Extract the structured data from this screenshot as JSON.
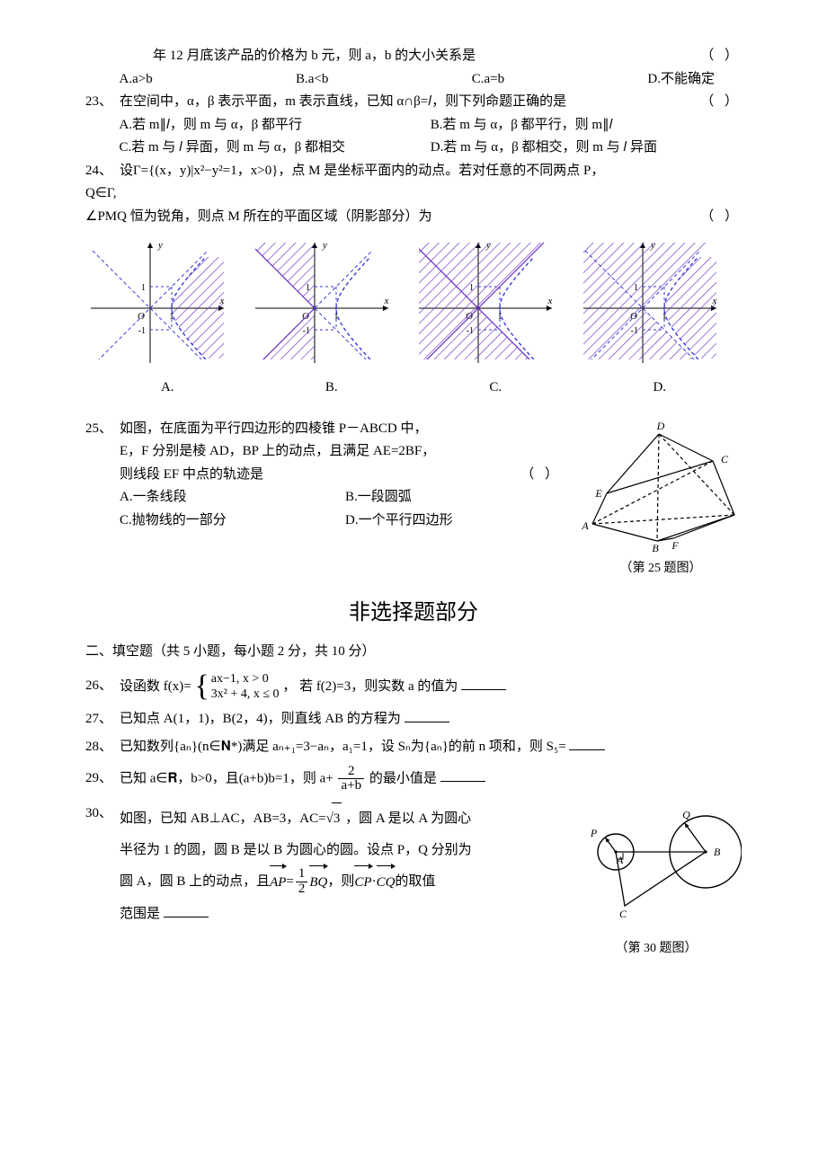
{
  "colors": {
    "text": "#000000",
    "bg": "#ffffff",
    "chart_axis": "#000000",
    "chart_dash": "#3b3bd6",
    "chart_hatch": "#6a2fc4",
    "chart_label": "#000000"
  },
  "q22": {
    "frag": "年 12 月底该产品的价格为 b 元，则 a，b 的大小关系是",
    "paren": "（     ）",
    "opts": [
      "A.a>b",
      "B.a<b",
      "C.a=b",
      "D.不能确定"
    ]
  },
  "q23": {
    "num": "23、",
    "text": "在空间中，α，β 表示平面，m 表示直线，已知 α∩β=𝑙，则下列命题正确的是",
    "paren": "（     ）",
    "opts": [
      "A.若 m∥𝑙，则 m 与 α，β 都平行",
      "B.若 m 与 α，β 都平行，则 m∥𝑙",
      "C.若 m 与 𝑙 异面，则 m 与 α，β 都相交",
      "D.若 m 与 α，β 都相交，则 m 与 𝑙 异面"
    ]
  },
  "q24": {
    "num": "24、",
    "text1": "设Γ={(x，y)|x²−y²=1，x>0}，点 M 是坐标平面内的动点。若对任意的不同两点 P，",
    "text1b": "Q∈Γ,",
    "text2": "∠PMQ 恒为锐角，则点 M 所在的平面区域（阴影部分）为",
    "paren": "（     ）",
    "chart": {
      "type": "4 hyperbola-region diagrams",
      "width": 160,
      "height": 150,
      "axis_color": "#000000",
      "asymptote_color": "#3b3bd6",
      "curve_color": "#3b3bd6",
      "hatch_color": "#6a2fc4",
      "tick_labels": [
        "1",
        "-1",
        "1"
      ],
      "axis_labels": [
        "x",
        "y",
        "O"
      ],
      "tick_fontsize": 10,
      "axis_fontsize": 11
    },
    "optlabels": [
      "A.",
      "B.",
      "C.",
      "D."
    ]
  },
  "q25": {
    "num": "25、",
    "l1": "如图，在底面为平行四边形的四棱锥 P－ABCD 中，",
    "l2": "E，F 分别是棱 AD，BP 上的动点，且满足 AE=2BF，",
    "l3": "则线段 EF 中点的轨迹是",
    "paren": "（     ）",
    "opts": [
      "A.一条线段",
      "B.一段圆弧",
      "C.抛物线的一部分",
      "D.一个平行四边形"
    ],
    "caption": "（第 25 题图）",
    "fig": {
      "labels": [
        "A",
        "B",
        "C",
        "D",
        "E",
        "F",
        "P"
      ],
      "line_color": "#000000",
      "dash_color": "#000000"
    }
  },
  "sectionTitle": "非选择题部分",
  "section2": "二、填空题（共 5 小题，每小题 2 分，共 10 分）",
  "q26": {
    "num": "26、",
    "pre": "设函数 f(x)=",
    "cases": [
      "ax−1, x > 0",
      "3x² + 4, x ≤ 0"
    ],
    "post": "， 若 f(2)=3，则实数 a 的值为"
  },
  "q27": {
    "num": "27、",
    "text": "已知点 A(1，1)，B(2，4)，则直线 AB 的方程为"
  },
  "q28": {
    "num": "28、",
    "text": "已知数列{aₙ}(n∈𝐍*)满足 aₙ₊₁=3−aₙ，a₁=1，设 Sₙ为{aₙ}的前 n 项和，则 S₅="
  },
  "q29": {
    "num": "29、",
    "pre": "已知 a∈𝐑，b>0，且(a+b)b=1，则 a+",
    "frac_num": "2",
    "frac_den": "a+b",
    "post": "的最小值是"
  },
  "q30": {
    "num": "30、",
    "l1_a": "如图，已知 AB⊥AC，AB=3，AC=",
    "l1_rad": "3",
    "l1_b": " ，圆 A 是以 A 为圆心",
    "l2": "半径为 1 的圆，圆 B 是以 B 为圆心的圆。设点 P，Q 分别为",
    "l3_a": "圆 A，圆 B 上的动点，且 ",
    "l3_vec1": "AP",
    "l3_eq": " = ",
    "l3_frac_num": "1",
    "l3_frac_den": "2",
    "l3_vec2": "BQ",
    "l3_mid": " ，则 ",
    "l3_vec3": "CP",
    "l3_dot": " · ",
    "l3_vec4": "CQ",
    "l3_b": " 的取值",
    "l4": "范围是",
    "caption": "（第 30 题图）",
    "fig": {
      "labels": [
        "A",
        "B",
        "C",
        "P",
        "Q"
      ],
      "line_color": "#000000"
    }
  }
}
